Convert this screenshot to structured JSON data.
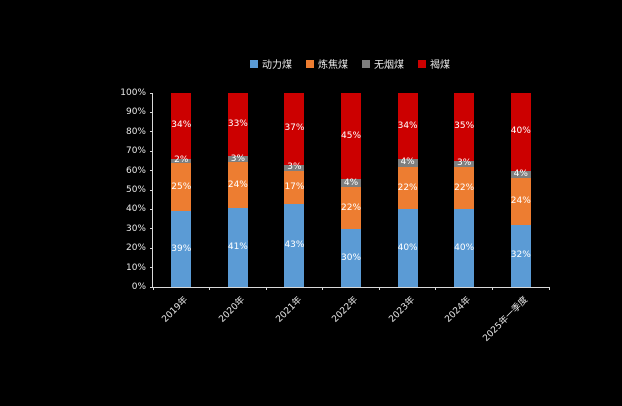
{
  "chart_data": {
    "type": "bar",
    "stacked": true,
    "percent": true,
    "title": "",
    "categories": [
      "2019年",
      "2020年",
      "2021年",
      "2022年",
      "2023年",
      "2024年",
      "2025年一季度"
    ],
    "series": [
      {
        "name": "动力煤",
        "color": "#5B9BD5",
        "values": [
          39,
          41,
          43,
          30,
          40,
          40,
          32
        ]
      },
      {
        "name": "炼焦煤",
        "color": "#ED7D31",
        "values": [
          25,
          24,
          17,
          22,
          22,
          22,
          24
        ]
      },
      {
        "name": "无烟煤",
        "color": "#7F7F7F",
        "values": [
          2,
          3,
          3,
          4,
          4,
          3,
          4
        ]
      },
      {
        "name": "褐煤",
        "color": "#CC0000",
        "values": [
          34,
          33,
          37,
          45,
          34,
          35,
          40
        ]
      }
    ],
    "label_format": "{v}%",
    "y_ticks": [
      "0%",
      "10%",
      "20%",
      "30%",
      "40%",
      "50%",
      "60%",
      "70%",
      "80%",
      "90%",
      "100%"
    ],
    "ylim": [
      0,
      100
    ],
    "legend_position": "top",
    "grid": false,
    "background": "#000000",
    "axis_color": "#d9d9d9",
    "text_color": "#e8e8e8"
  }
}
